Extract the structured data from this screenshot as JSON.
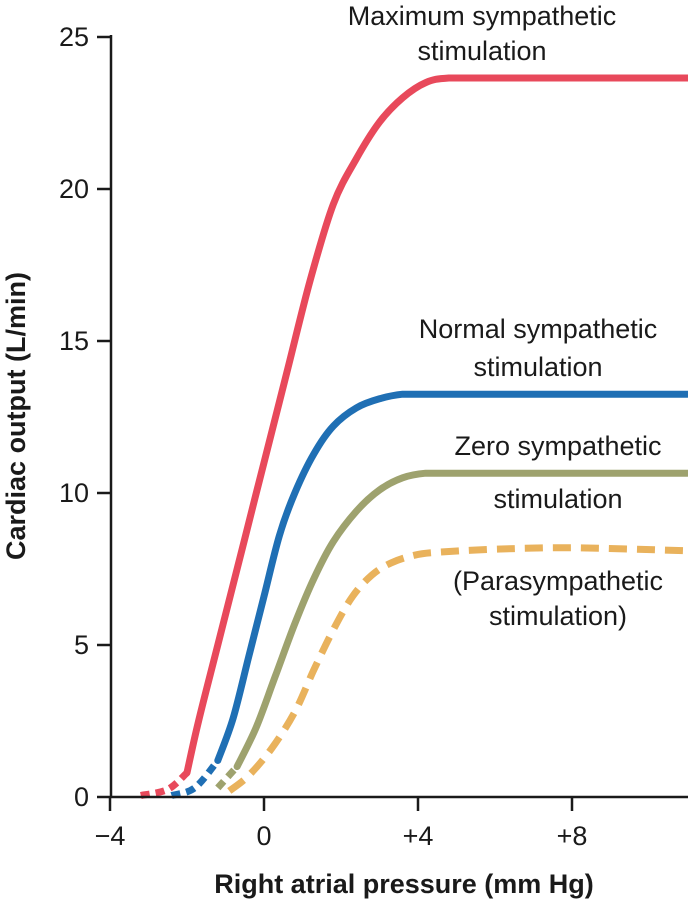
{
  "chart_data": {
    "type": "line",
    "title": "",
    "xlabel": "Right atrial pressure (mm Hg)",
    "ylabel": "Cardiac output (L/min)",
    "xlim": [
      -4,
      11
    ],
    "ylim": [
      0,
      25
    ],
    "x_ticks": [
      -4,
      0,
      4,
      8
    ],
    "x_tick_labels": [
      "−4",
      "0",
      "+4",
      "+8"
    ],
    "y_ticks": [
      0,
      5,
      10,
      15,
      20,
      25
    ],
    "y_tick_labels": [
      "0",
      "5",
      "10",
      "15",
      "20",
      "25"
    ],
    "grid": false,
    "legend": "none",
    "series": [
      {
        "name": "Maximum sympathetic stimulation",
        "color": "#e8495b",
        "dashed": false,
        "points": [
          [
            -3.2,
            0.05
          ],
          [
            -2.5,
            0.25
          ],
          [
            -2.0,
            0.8
          ],
          [
            -1.7,
            2.5
          ],
          [
            -1.2,
            5.0
          ],
          [
            -0.5,
            8.5
          ],
          [
            0.0,
            11.0
          ],
          [
            0.6,
            14.0
          ],
          [
            1.2,
            17.0
          ],
          [
            1.8,
            19.5
          ],
          [
            2.4,
            21.0
          ],
          [
            3.0,
            22.2
          ],
          [
            3.6,
            23.0
          ],
          [
            4.2,
            23.5
          ],
          [
            4.8,
            23.65
          ],
          [
            6.0,
            23.65
          ],
          [
            8.0,
            23.65
          ],
          [
            10.0,
            23.65
          ],
          [
            11.0,
            23.65
          ]
        ]
      },
      {
        "name": "Normal sympathetic stimulation",
        "color": "#1f6fb4",
        "dashed": false,
        "points": [
          [
            -2.4,
            0.05
          ],
          [
            -1.8,
            0.3
          ],
          [
            -1.2,
            1.2
          ],
          [
            -0.8,
            2.6
          ],
          [
            -0.4,
            4.6
          ],
          [
            0.0,
            6.6
          ],
          [
            0.4,
            8.6
          ],
          [
            0.8,
            10.0
          ],
          [
            1.3,
            11.3
          ],
          [
            1.8,
            12.2
          ],
          [
            2.4,
            12.8
          ],
          [
            3.0,
            13.1
          ],
          [
            3.6,
            13.25
          ],
          [
            4.2,
            13.25
          ],
          [
            6.0,
            13.25
          ],
          [
            8.0,
            13.25
          ],
          [
            11.0,
            13.25
          ]
        ]
      },
      {
        "name": "Zero sympathetic stimulation",
        "color": "#9ea26e",
        "dashed": false,
        "points": [
          [
            -1.2,
            0.3
          ],
          [
            -0.7,
            1.0
          ],
          [
            -0.2,
            2.3
          ],
          [
            0.3,
            4.0
          ],
          [
            0.8,
            5.7
          ],
          [
            1.3,
            7.2
          ],
          [
            1.8,
            8.4
          ],
          [
            2.4,
            9.4
          ],
          [
            3.0,
            10.1
          ],
          [
            3.6,
            10.5
          ],
          [
            4.2,
            10.65
          ],
          [
            5.0,
            10.65
          ],
          [
            8.0,
            10.65
          ],
          [
            11.0,
            10.65
          ]
        ]
      },
      {
        "name": "(Parasympathetic stimulation)",
        "color": "#e9b25c",
        "dashed": true,
        "points": [
          [
            -0.9,
            0.2
          ],
          [
            -0.4,
            0.7
          ],
          [
            0.2,
            1.6
          ],
          [
            0.8,
            2.8
          ],
          [
            1.3,
            4.2
          ],
          [
            1.8,
            5.5
          ],
          [
            2.3,
            6.6
          ],
          [
            2.8,
            7.3
          ],
          [
            3.3,
            7.7
          ],
          [
            3.9,
            7.95
          ],
          [
            4.5,
            8.05
          ],
          [
            6.0,
            8.15
          ],
          [
            8.0,
            8.2
          ],
          [
            11.0,
            8.1
          ]
        ]
      }
    ],
    "annotations": [
      {
        "lines": [
          "Maximum sympathetic",
          "stimulation"
        ],
        "series": 0
      },
      {
        "lines": [
          "Normal sympathetic",
          "stimulation"
        ],
        "series": 1
      },
      {
        "lines": [
          "Zero sympathetic",
          "stimulation"
        ],
        "series": 2
      },
      {
        "lines": [
          "(Parasympathetic",
          "stimulation)"
        ],
        "series": 3
      }
    ]
  }
}
